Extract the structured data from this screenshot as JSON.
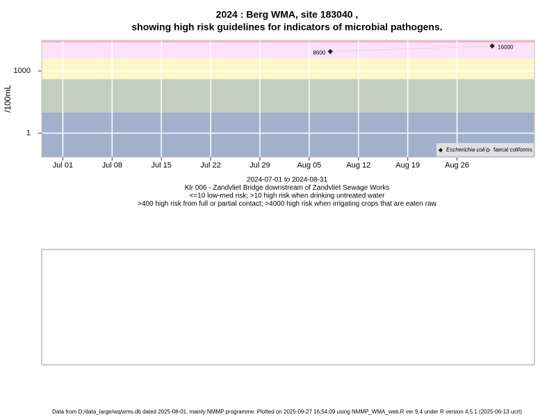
{
  "chart_data": {
    "type": "line",
    "title": "2024 : Berg WMA, site 183040 ,",
    "subtitle": "showing high risk guidelines for indicators of microbial pathogens.",
    "y_label": "/100mL",
    "log_y": true,
    "grid": true,
    "legend": "bottom-right",
    "x": [
      "2024-08-08",
      "2024-08-31"
    ],
    "series": [
      {
        "name": "Escherichia coli",
        "color": "#222222",
        "filled": true,
        "values": [
          8600,
          16000
        ]
      },
      {
        "name": "faecal coliforms",
        "color": "#222222",
        "filled": false,
        "values": [
          null,
          null
        ]
      }
    ],
    "xlim": [
      "2024-06-28",
      "2024-09-06"
    ],
    "xticks": [
      {
        "value": "2024-07-01",
        "label": "Jul 01"
      },
      {
        "value": "2024-07-08",
        "label": "Jul 08"
      },
      {
        "value": "2024-07-15",
        "label": "Jul 15"
      },
      {
        "value": "2024-07-22",
        "label": "Jul 22"
      },
      {
        "value": "2024-07-29",
        "label": "Jul 29"
      },
      {
        "value": "2024-08-05",
        "label": "Aug 05"
      },
      {
        "value": "2024-08-12",
        "label": "Aug 12"
      },
      {
        "value": "2024-08-19",
        "label": "Aug 19"
      },
      {
        "value": "2024-08-26",
        "label": "Aug 26"
      }
    ],
    "ylim": [
      0.07,
      30000
    ],
    "yticks": [
      1,
      1000
    ],
    "band_edges": [
      10,
      400,
      4000
    ],
    "band_colors": [
      "#a1b1cc",
      "#c5cdc1",
      "#fdf6c9",
      "#fde1f7"
    ],
    "caption": [
      "2024-07-01 to 2024-08-31",
      "Klr 006 - Zandvliet Bridge downstream of Zandvliet Sewage Works",
      "<=10 low-med risk; >10 high risk when drinking untreated water",
      ">400 high risk from full or partial contact; >4000 high risk when irrigating crops that are eaten raw"
    ],
    "footer": "Data from D:/data_large/wq/wms.db dated 2025-08-01, mainly NMMP programme. Plotted on 2025-09-27 16:54:09 using NMMP_WMA_web.R ver 9.4 under R version 4.5.1 (2025-06-13 ucrt)"
  }
}
